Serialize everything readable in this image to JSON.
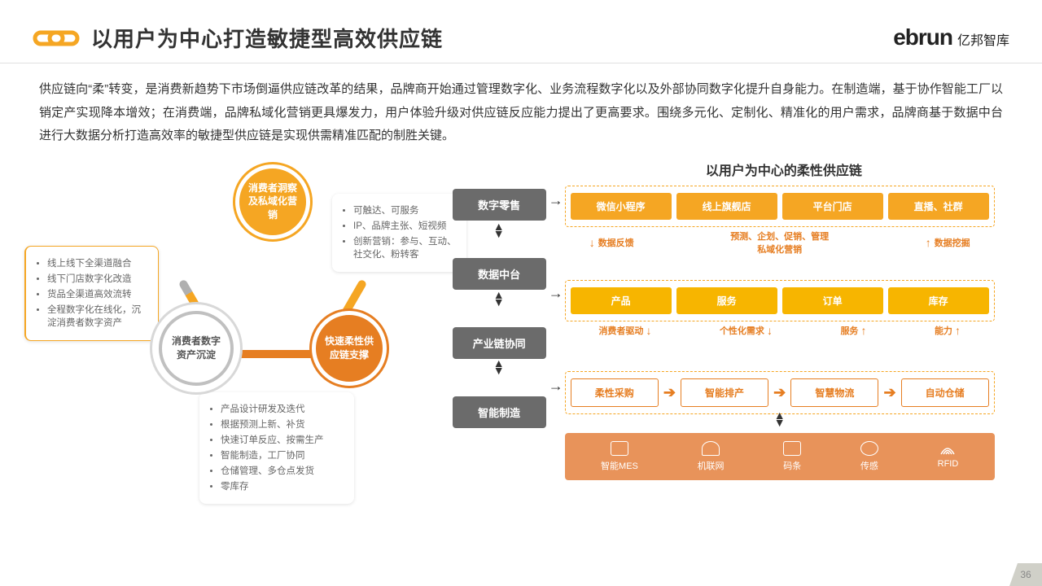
{
  "header": {
    "title": "以用户为中心打造敏捷型高效供应链",
    "brand_main": "ebrun",
    "brand_sub": "亿邦智库"
  },
  "intro": "供应链向“柔”转变，是消费新趋势下市场倒逼供应链改革的结果，品牌商开始通过管理数字化、业务流程数字化以及外部协同数字化提升自身能力。在制造端，基于协作智能工厂以销定产实现降本增效；在消费端，品牌私域化营销更具爆发力，用户体验升级对供应链反应能力提出了更高要求。围绕多元化、定制化、精准化的用户需求，品牌商基于数据中台进行大数据分析打造高效率的敏捷型供应链是实现供需精准匹配的制胜关键。",
  "triangle": {
    "top": "消费者洞察及私域化营销",
    "bl": "消费者数字资产沉淀",
    "br": "快速柔性供应链支撑",
    "callout_left": [
      "线上线下全渠道融合",
      "线下门店数字化改造",
      "货品全渠道高效流转",
      "全程数字化在线化，沉淀消费者数字资产"
    ],
    "callout_right": [
      "可触达、可服务",
      "IP、品牌主张、短视频",
      "创新营销：参与、互动、社交化、粉转客"
    ],
    "callout_bottom": [
      "产品设计研发及迭代",
      "根据预测上新、补货",
      "快速订单反应、按需生产",
      "智能制造，工厂协同",
      "仓储管理、多仓点发货",
      "零库存"
    ]
  },
  "right": {
    "title": "以用户为中心的柔性供应链",
    "hubs": [
      "数字零售",
      "数据中台",
      "产业链协同",
      "智能制造"
    ],
    "row1": [
      "微信小程序",
      "线上旗舰店",
      "平台门店",
      "直播、社群"
    ],
    "labels1": {
      "left": "数据反馈",
      "mid": "预测、企划、促销、管理\n私域化营销",
      "right": "数据挖掘"
    },
    "row2": [
      "产品",
      "服务",
      "订单",
      "库存"
    ],
    "labels2": [
      "消费者驱动",
      "个性化需求",
      "服务",
      "能力"
    ],
    "row3": [
      "柔性采购",
      "智能排产",
      "智慧物流",
      "自动仓储"
    ],
    "bottom": [
      "智能MES",
      "机联网",
      "码条",
      "传感",
      "RFID"
    ]
  },
  "colors": {
    "orange": "#f5a623",
    "dark_orange": "#e67e22",
    "gray": "#6b6b6b",
    "bar": "#e8935a"
  },
  "page": "36"
}
